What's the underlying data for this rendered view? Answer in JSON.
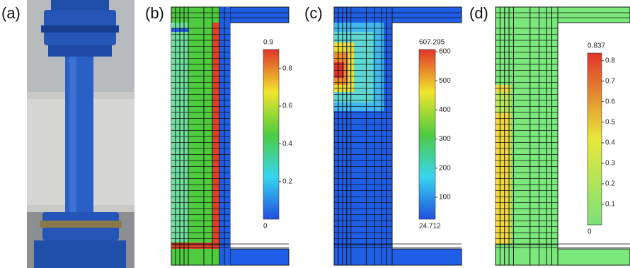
{
  "panels": [
    {
      "label": "(a)"
    },
    {
      "label": "(b)",
      "colorbar": {
        "max": 0.9,
        "min": 0,
        "ticks": [
          0.2,
          0.4,
          0.6,
          0.8
        ]
      }
    },
    {
      "label": "(c)",
      "colorbar": {
        "max": 607.295,
        "min": 24.712,
        "ticks": [
          100,
          200,
          300,
          400,
          500,
          600
        ]
      }
    },
    {
      "label": "(d)",
      "colorbar": {
        "max": 0.837,
        "min": 0,
        "ticks": [
          0.1,
          0.2,
          0.3,
          0.4,
          0.5,
          0.6,
          0.7,
          0.8
        ]
      }
    }
  ]
}
